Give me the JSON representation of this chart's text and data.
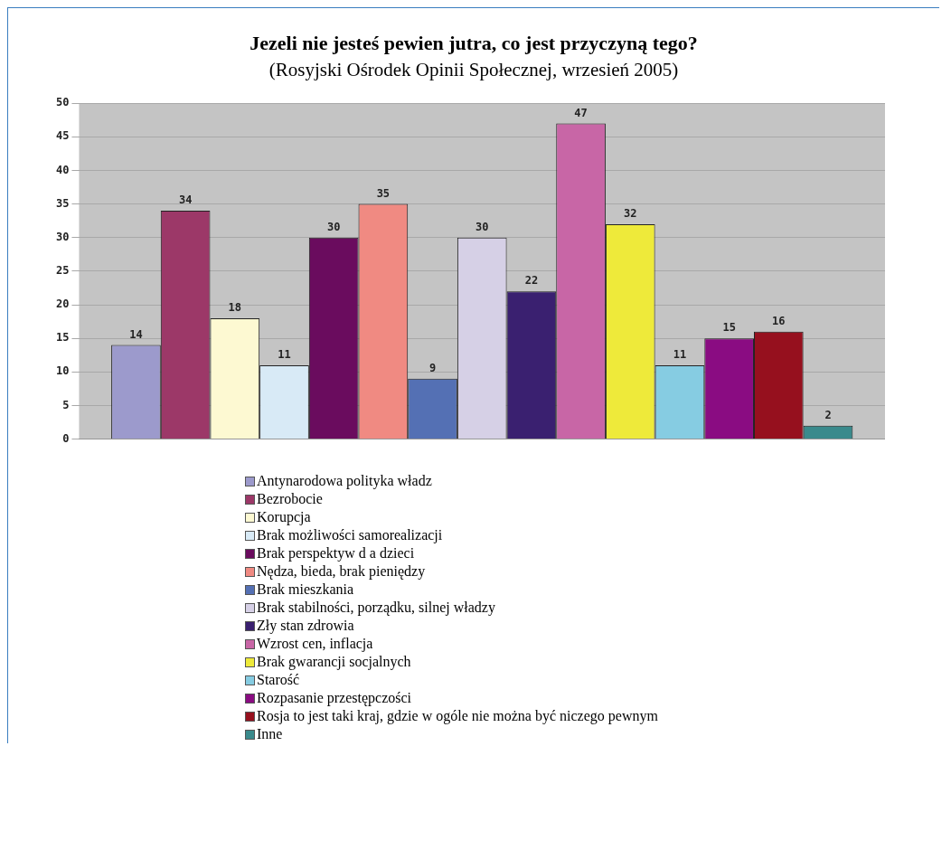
{
  "chart_data": {
    "type": "bar",
    "title": "Jezeli nie jesteś pewien jutra, co jest przyczyną tego?",
    "subtitle": "(Rosyjski Ośrodek Opinii Społecznej, wrzesień 2005)",
    "categories": [
      null
    ],
    "series": [
      {
        "name": "Antynarodowa polityka władz",
        "color": "#9c9acc",
        "values": [
          14
        ]
      },
      {
        "name": "Bezrobocie",
        "color": "#9c3868",
        "values": [
          34
        ]
      },
      {
        "name": "Korupcja",
        "color": "#fdf9d2",
        "values": [
          18
        ]
      },
      {
        "name": "Brak możliwości samorealizacji",
        "color": "#d8eaf6",
        "values": [
          11
        ]
      },
      {
        "name": "Brak perspektyw d a dzieci",
        "color": "#6a0c5e",
        "values": [
          30
        ]
      },
      {
        "name": "Nędza, bieda, brak pieniędzy",
        "color": "#f08a82",
        "values": [
          35
        ]
      },
      {
        "name": "Brak mieszkania",
        "color": "#5470b4",
        "values": [
          9
        ]
      },
      {
        "name": "Brak stabilności, porządku, silnej władzy",
        "color": "#d6d0e6",
        "values": [
          30
        ]
      },
      {
        "name": "Zły stan zdrowia",
        "color": "#3a2070",
        "values": [
          22
        ]
      },
      {
        "name": "Wzrost cen, inflacja",
        "color": "#c866a6",
        "values": [
          47
        ]
      },
      {
        "name": "Brak gwarancji socjalnych",
        "color": "#eeea3a",
        "values": [
          32
        ]
      },
      {
        "name": "Starość",
        "color": "#86cce2",
        "values": [
          11
        ]
      },
      {
        "name": "Rozpasanie przestępczości",
        "color": "#8a0c82",
        "values": [
          15
        ]
      },
      {
        "name": "Rosja to jest taki kraj, gdzie w ogóle nie można być niczego pewnym",
        "color": "#96101e",
        "values": [
          16
        ]
      },
      {
        "name": "Inne",
        "color": "#3a8a8c",
        "values": [
          2
        ]
      }
    ],
    "ylim": [
      0,
      50
    ],
    "yticks": [
      0,
      5,
      10,
      15,
      20,
      25,
      30,
      35,
      40,
      45,
      50
    ],
    "grid": "y",
    "data_labels": true,
    "legend": "bottom"
  }
}
